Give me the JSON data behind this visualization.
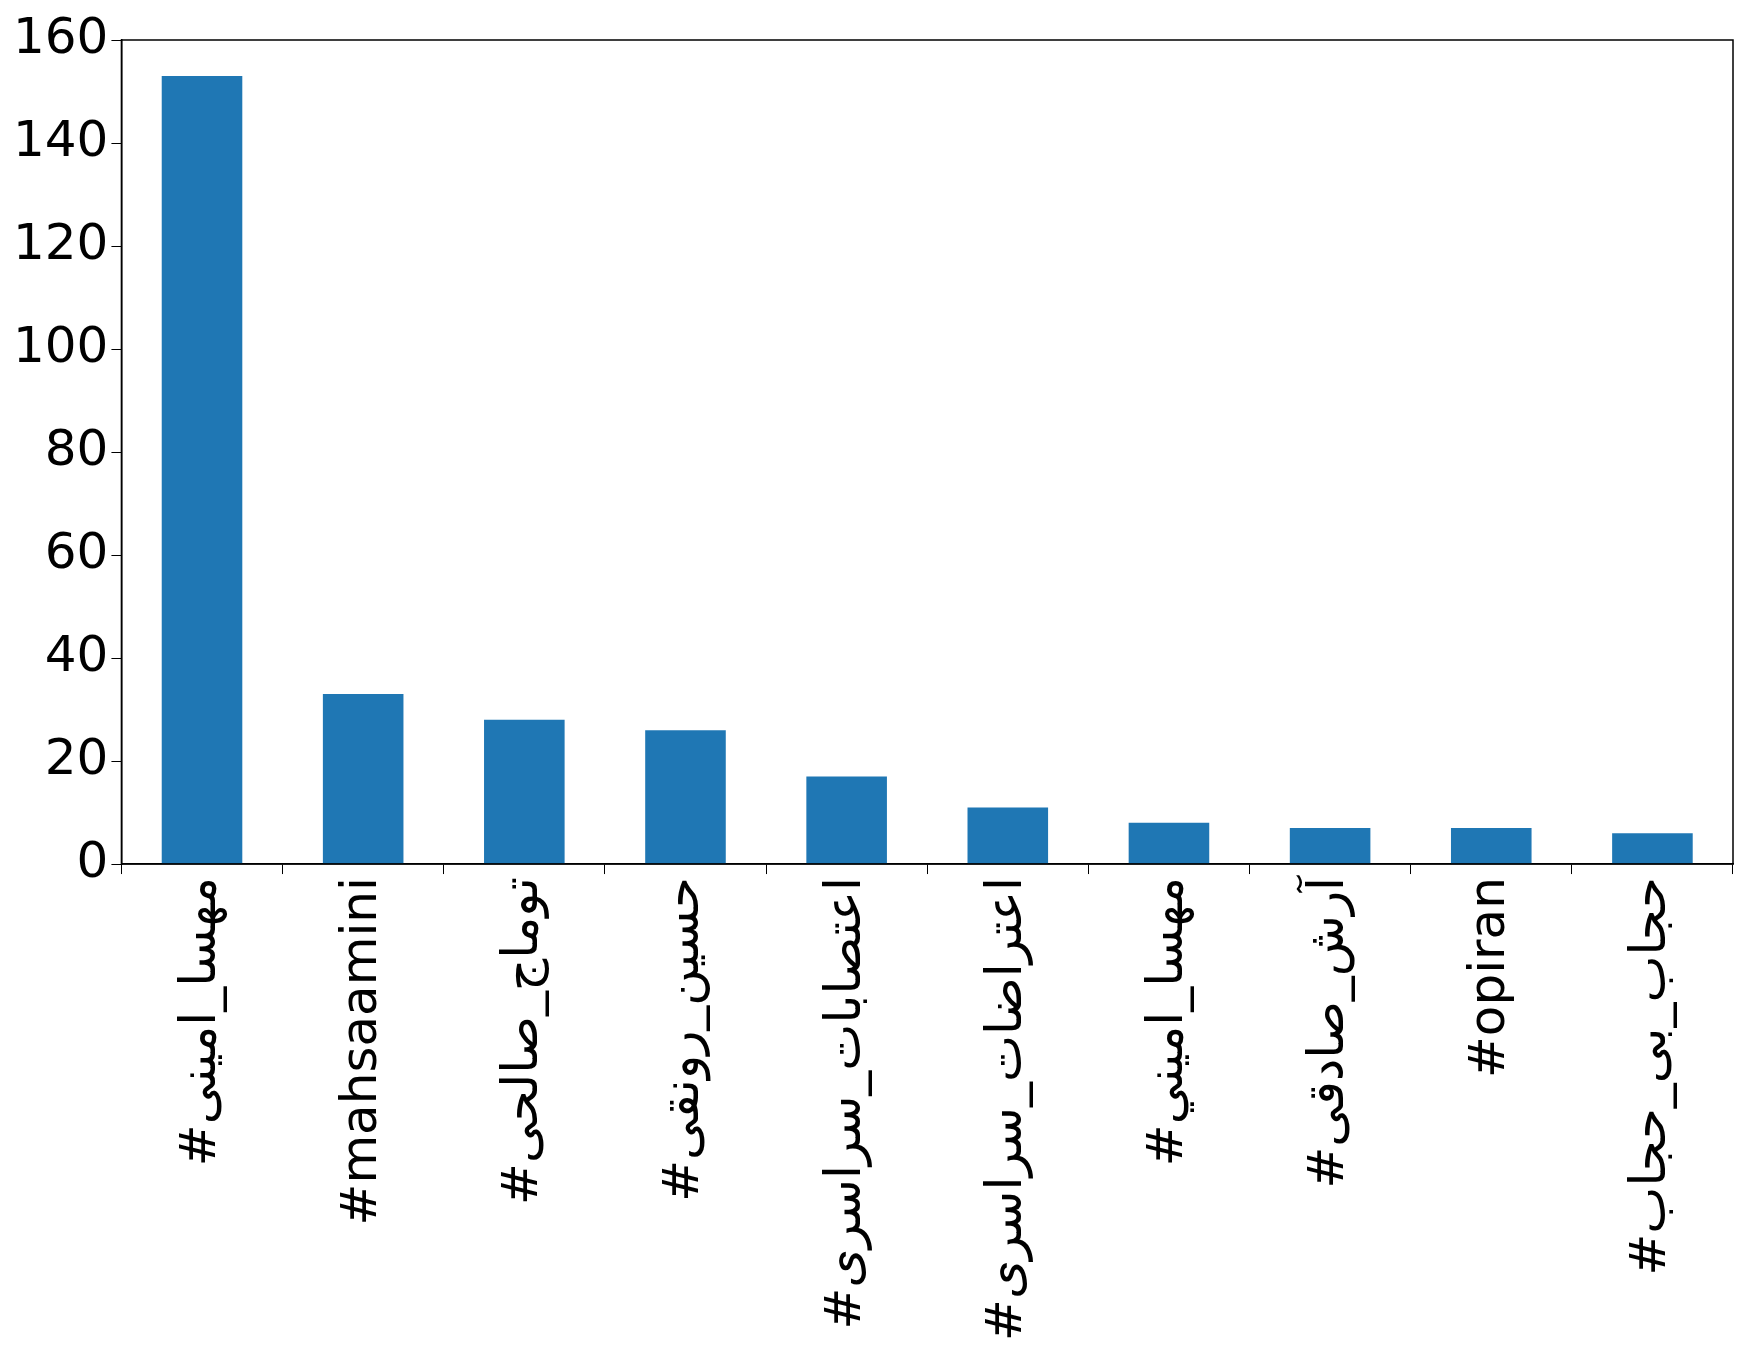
{
  "chart_data": {
    "type": "bar",
    "categories": [
      "#مهسا_امینی",
      "#mahsaamini",
      "#توماج_صالحی",
      "#حسین_رونقی",
      "#اعتصابات_سراسری",
      "#اعتراضات_سراسری",
      "#مهسا_امیني",
      "#آرش_صادقی",
      "#opiran",
      "#حجاب_بی_حجاب"
    ],
    "values": [
      153,
      33,
      28,
      26,
      17,
      11,
      8,
      7,
      7,
      6
    ],
    "color": "#1f77b4",
    "ylim": [
      0,
      160
    ],
    "yticks": [
      0,
      20,
      40,
      60,
      80,
      100,
      120,
      140,
      160
    ],
    "grid": false,
    "legend": false
  }
}
